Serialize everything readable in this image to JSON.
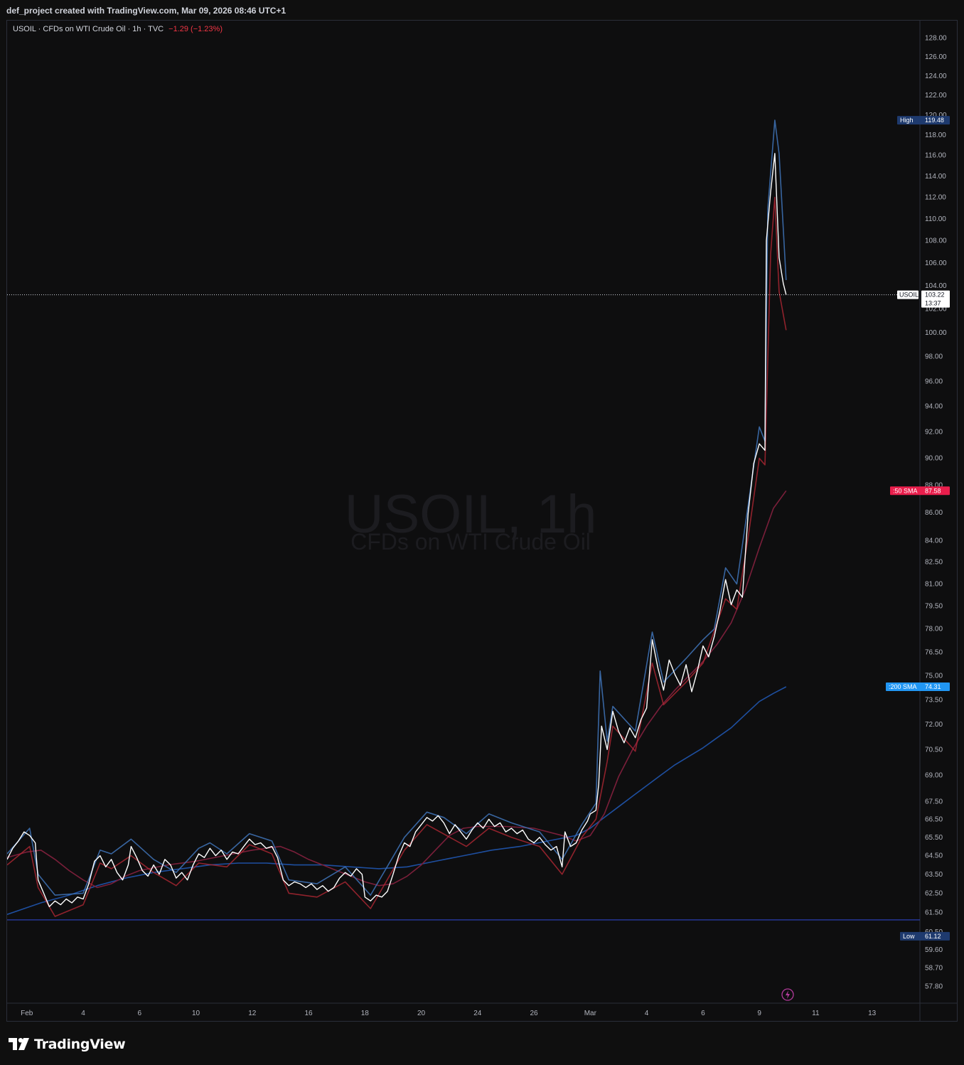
{
  "header": {
    "credit": "def_project created with TradingView.com, Mar 09, 2026 08:46 UTC+1"
  },
  "legend": {
    "text": "USOIL · CFDs on WTI Crude Oil · 1h · TVC",
    "change": "−1.29 (−1.23%)"
  },
  "watermark": {
    "line1": "USOIL, 1h",
    "line2": "CFDs on WTI Crude Oil"
  },
  "footer": {
    "logo_text": "TradingView"
  },
  "colors": {
    "price": "#ffffff",
    "price_shadow_blue": "#2962ff",
    "price_shadow_red": "#b22833",
    "sma50": "#7a1f3a",
    "sma200": "#1e4fa0",
    "low_line": "#2a3fb0",
    "change": "#f23645",
    "tag_high": "#1e3a6e",
    "tag_sma50": "#e91e4c",
    "tag_sma200": "#2196f3"
  },
  "chart_data": {
    "type": "line",
    "symbol": "USOIL",
    "interval": "1h",
    "y_scale": "log",
    "ylim": [
      57.0,
      129.5
    ],
    "y_ticks": [
      "128.00",
      "126.00",
      "124.00",
      "122.00",
      "120.00",
      "118.00",
      "116.00",
      "114.00",
      "112.00",
      "110.00",
      "108.00",
      "106.00",
      "104.00",
      "102.00",
      "100.00",
      "98.00",
      "96.00",
      "94.00",
      "92.00",
      "90.00",
      "88.00",
      "86.00",
      "84.00",
      "82.50",
      "81.00",
      "79.50",
      "78.00",
      "76.50",
      "75.00",
      "73.50",
      "72.00",
      "70.50",
      "69.00",
      "67.50",
      "66.50",
      "65.50",
      "64.50",
      "63.50",
      "62.50",
      "61.50",
      "60.50",
      "59.60",
      "58.70",
      "57.80"
    ],
    "x_ticks": [
      "Feb",
      "4",
      "6",
      "10",
      "12",
      "16",
      "18",
      "20",
      "24",
      "26",
      "Mar",
      "4",
      "6",
      "9",
      "11",
      "13"
    ],
    "x_tick_days": [
      0,
      2,
      4,
      6,
      8,
      10,
      12,
      14,
      16,
      18,
      20,
      22,
      24,
      26,
      28,
      30
    ],
    "x_range_days": [
      -0.7,
      31.7
    ],
    "price_series": [
      [
        -0.7,
        64.3
      ],
      [
        -0.5,
        64.9
      ],
      [
        -0.3,
        65.3
      ],
      [
        -0.1,
        65.8
      ],
      [
        0.1,
        65.6
      ],
      [
        0.3,
        65.2
      ],
      [
        0.4,
        63.2
      ],
      [
        0.6,
        62.5
      ],
      [
        0.8,
        61.8
      ],
      [
        1.0,
        62.1
      ],
      [
        1.2,
        61.9
      ],
      [
        1.4,
        62.2
      ],
      [
        1.6,
        62.0
      ],
      [
        1.8,
        62.3
      ],
      [
        2.0,
        62.2
      ],
      [
        2.2,
        63.0
      ],
      [
        2.4,
        64.2
      ],
      [
        2.6,
        64.5
      ],
      [
        2.8,
        63.9
      ],
      [
        3.0,
        64.3
      ],
      [
        3.2,
        63.6
      ],
      [
        3.4,
        63.2
      ],
      [
        3.6,
        64.0
      ],
      [
        3.7,
        65.0
      ],
      [
        3.9,
        64.4
      ],
      [
        4.1,
        63.7
      ],
      [
        4.3,
        63.4
      ],
      [
        4.5,
        64.0
      ],
      [
        4.7,
        63.5
      ],
      [
        4.9,
        64.3
      ],
      [
        5.1,
        64.0
      ],
      [
        5.3,
        63.3
      ],
      [
        5.5,
        63.6
      ],
      [
        5.7,
        63.2
      ],
      [
        5.9,
        64.0
      ],
      [
        6.1,
        64.6
      ],
      [
        6.3,
        64.4
      ],
      [
        6.5,
        64.9
      ],
      [
        6.7,
        64.5
      ],
      [
        6.9,
        64.8
      ],
      [
        7.1,
        64.3
      ],
      [
        7.3,
        64.7
      ],
      [
        7.5,
        64.6
      ],
      [
        7.7,
        65.0
      ],
      [
        7.9,
        65.4
      ],
      [
        8.1,
        65.1
      ],
      [
        8.3,
        65.2
      ],
      [
        8.5,
        64.9
      ],
      [
        8.7,
        65.0
      ],
      [
        8.9,
        64.4
      ],
      [
        9.1,
        63.2
      ],
      [
        9.3,
        62.9
      ],
      [
        9.5,
        63.1
      ],
      [
        9.7,
        63.0
      ],
      [
        9.9,
        62.8
      ],
      [
        10.1,
        63.0
      ],
      [
        10.3,
        62.7
      ],
      [
        10.5,
        62.9
      ],
      [
        10.7,
        62.6
      ],
      [
        10.9,
        62.8
      ],
      [
        11.1,
        63.3
      ],
      [
        11.3,
        63.6
      ],
      [
        11.5,
        63.4
      ],
      [
        11.7,
        63.8
      ],
      [
        11.9,
        63.5
      ],
      [
        12.0,
        62.3
      ],
      [
        12.2,
        62.1
      ],
      [
        12.4,
        62.4
      ],
      [
        12.6,
        62.3
      ],
      [
        12.8,
        62.6
      ],
      [
        13.0,
        63.5
      ],
      [
        13.2,
        64.5
      ],
      [
        13.4,
        65.2
      ],
      [
        13.6,
        65.0
      ],
      [
        13.8,
        65.8
      ],
      [
        14.0,
        66.2
      ],
      [
        14.2,
        66.6
      ],
      [
        14.4,
        66.4
      ],
      [
        14.6,
        66.7
      ],
      [
        14.8,
        66.3
      ],
      [
        15.0,
        65.7
      ],
      [
        15.2,
        66.2
      ],
      [
        15.4,
        65.8
      ],
      [
        15.6,
        65.4
      ],
      [
        15.8,
        65.9
      ],
      [
        16.0,
        66.3
      ],
      [
        16.2,
        66.0
      ],
      [
        16.4,
        66.5
      ],
      [
        16.6,
        66.1
      ],
      [
        16.8,
        66.3
      ],
      [
        17.0,
        65.8
      ],
      [
        17.2,
        66.0
      ],
      [
        17.4,
        65.7
      ],
      [
        17.6,
        65.9
      ],
      [
        17.8,
        65.4
      ],
      [
        18.0,
        65.2
      ],
      [
        18.2,
        65.5
      ],
      [
        18.4,
        65.1
      ],
      [
        18.6,
        64.8
      ],
      [
        18.8,
        65.0
      ],
      [
        19.0,
        63.9
      ],
      [
        19.1,
        65.8
      ],
      [
        19.3,
        65.0
      ],
      [
        19.5,
        65.2
      ],
      [
        19.7,
        65.9
      ],
      [
        19.9,
        66.4
      ],
      [
        20.0,
        66.8
      ],
      [
        20.2,
        67.0
      ],
      [
        20.3,
        68.5
      ],
      [
        20.4,
        71.9
      ],
      [
        20.6,
        70.5
      ],
      [
        20.8,
        72.8
      ],
      [
        21.0,
        71.6
      ],
      [
        21.2,
        70.9
      ],
      [
        21.4,
        71.8
      ],
      [
        21.6,
        71.2
      ],
      [
        21.8,
        72.3
      ],
      [
        22.0,
        73.0
      ],
      [
        22.2,
        77.3
      ],
      [
        22.4,
        75.5
      ],
      [
        22.6,
        74.1
      ],
      [
        22.8,
        76.0
      ],
      [
        23.0,
        75.1
      ],
      [
        23.2,
        74.4
      ],
      [
        23.4,
        75.7
      ],
      [
        23.6,
        74.0
      ],
      [
        23.8,
        75.3
      ],
      [
        24.0,
        76.9
      ],
      [
        24.2,
        76.2
      ],
      [
        24.4,
        77.5
      ],
      [
        24.6,
        79.2
      ],
      [
        24.8,
        81.3
      ],
      [
        25.0,
        79.6
      ],
      [
        25.2,
        80.6
      ],
      [
        25.4,
        80.1
      ],
      [
        25.6,
        85.9
      ],
      [
        25.8,
        89.6
      ],
      [
        26.0,
        91.1
      ],
      [
        26.2,
        90.6
      ],
      [
        26.25,
        108.0
      ],
      [
        26.4,
        112.5
      ],
      [
        26.55,
        116.2
      ],
      [
        26.7,
        106.5
      ],
      [
        26.85,
        104.2
      ],
      [
        26.95,
        103.22
      ]
    ],
    "price_shadow": [
      [
        -0.7,
        64.6
      ],
      [
        0.1,
        66.0
      ],
      [
        0.4,
        63.5
      ],
      [
        1.0,
        62.4
      ],
      [
        2.0,
        62.5
      ],
      [
        2.6,
        64.8
      ],
      [
        3.0,
        64.6
      ],
      [
        3.7,
        65.4
      ],
      [
        4.5,
        64.3
      ],
      [
        5.3,
        63.6
      ],
      [
        6.1,
        64.9
      ],
      [
        6.5,
        65.2
      ],
      [
        7.1,
        64.6
      ],
      [
        7.9,
        65.7
      ],
      [
        8.7,
        65.3
      ],
      [
        9.3,
        63.2
      ],
      [
        10.3,
        63.0
      ],
      [
        11.3,
        63.9
      ],
      [
        12.2,
        62.4
      ],
      [
        13.4,
        65.5
      ],
      [
        14.2,
        66.9
      ],
      [
        14.8,
        66.6
      ],
      [
        15.6,
        65.7
      ],
      [
        16.4,
        66.8
      ],
      [
        17.2,
        66.3
      ],
      [
        18.2,
        65.8
      ],
      [
        19.0,
        64.3
      ],
      [
        19.7,
        66.2
      ],
      [
        20.2,
        67.4
      ],
      [
        20.35,
        75.3
      ],
      [
        20.6,
        71.0
      ],
      [
        20.8,
        73.1
      ],
      [
        21.6,
        71.6
      ],
      [
        22.2,
        77.8
      ],
      [
        22.6,
        74.6
      ],
      [
        23.4,
        76.1
      ],
      [
        24.0,
        77.3
      ],
      [
        24.4,
        78.0
      ],
      [
        24.8,
        82.1
      ],
      [
        25.2,
        81.0
      ],
      [
        25.6,
        86.5
      ],
      [
        26.0,
        92.4
      ],
      [
        26.2,
        91.3
      ],
      [
        26.3,
        110.9
      ],
      [
        26.55,
        119.48
      ],
      [
        26.7,
        116.2
      ],
      [
        26.95,
        104.5
      ]
    ],
    "price_low_shadow": [
      [
        -0.7,
        64.0
      ],
      [
        0.1,
        65.0
      ],
      [
        0.4,
        62.8
      ],
      [
        1.0,
        61.3
      ],
      [
        2.0,
        61.9
      ],
      [
        2.6,
        64.1
      ],
      [
        3.0,
        63.8
      ],
      [
        3.7,
        64.5
      ],
      [
        4.5,
        63.6
      ],
      [
        5.3,
        62.9
      ],
      [
        6.1,
        64.1
      ],
      [
        7.1,
        63.9
      ],
      [
        7.9,
        65.1
      ],
      [
        8.7,
        64.6
      ],
      [
        9.3,
        62.5
      ],
      [
        10.3,
        62.3
      ],
      [
        11.3,
        63.1
      ],
      [
        12.2,
        61.7
      ],
      [
        13.4,
        64.8
      ],
      [
        14.2,
        66.2
      ],
      [
        15.6,
        65.0
      ],
      [
        16.4,
        66.0
      ],
      [
        17.2,
        65.5
      ],
      [
        18.2,
        65.0
      ],
      [
        19.0,
        63.5
      ],
      [
        19.7,
        65.5
      ],
      [
        20.2,
        66.5
      ],
      [
        20.6,
        69.8
      ],
      [
        20.8,
        71.9
      ],
      [
        21.6,
        70.4
      ],
      [
        22.2,
        75.8
      ],
      [
        22.6,
        73.2
      ],
      [
        23.4,
        74.6
      ],
      [
        24.0,
        75.8
      ],
      [
        24.8,
        80.0
      ],
      [
        25.2,
        79.3
      ],
      [
        25.6,
        84.2
      ],
      [
        26.0,
        90.0
      ],
      [
        26.2,
        89.5
      ],
      [
        26.4,
        106.8
      ],
      [
        26.55,
        112.0
      ],
      [
        26.7,
        103.5
      ],
      [
        26.95,
        100.2
      ]
    ],
    "sma50": [
      [
        -0.7,
        64.4
      ],
      [
        0.0,
        64.7
      ],
      [
        0.5,
        64.8
      ],
      [
        1.0,
        64.3
      ],
      [
        1.5,
        63.7
      ],
      [
        2.0,
        63.2
      ],
      [
        2.5,
        62.8
      ],
      [
        3.0,
        63.0
      ],
      [
        3.5,
        63.4
      ],
      [
        4.0,
        63.7
      ],
      [
        5.0,
        64.0
      ],
      [
        6.0,
        64.2
      ],
      [
        7.0,
        64.5
      ],
      [
        8.0,
        64.8
      ],
      [
        9.0,
        65.0
      ],
      [
        9.5,
        64.7
      ],
      [
        10.0,
        64.3
      ],
      [
        10.5,
        64.0
      ],
      [
        11.0,
        63.7
      ],
      [
        11.5,
        63.4
      ],
      [
        12.0,
        63.1
      ],
      [
        12.5,
        62.9
      ],
      [
        13.0,
        63.0
      ],
      [
        13.5,
        63.4
      ],
      [
        14.0,
        64.0
      ],
      [
        14.5,
        64.8
      ],
      [
        15.0,
        65.6
      ],
      [
        15.5,
        66.0
      ],
      [
        16.0,
        66.1
      ],
      [
        17.0,
        66.1
      ],
      [
        18.0,
        66.0
      ],
      [
        19.0,
        65.6
      ],
      [
        19.5,
        65.3
      ],
      [
        20.0,
        65.6
      ],
      [
        20.5,
        66.8
      ],
      [
        21.0,
        68.9
      ],
      [
        21.5,
        70.5
      ],
      [
        22.0,
        71.9
      ],
      [
        22.5,
        73.1
      ],
      [
        23.0,
        74.1
      ],
      [
        23.5,
        75.0
      ],
      [
        24.0,
        75.9
      ],
      [
        24.5,
        77.0
      ],
      [
        25.0,
        78.4
      ],
      [
        25.5,
        80.6
      ],
      [
        26.0,
        83.5
      ],
      [
        26.5,
        86.3
      ],
      [
        26.95,
        87.58
      ]
    ],
    "sma200": [
      [
        -0.7,
        61.4
      ],
      [
        0.5,
        62.0
      ],
      [
        1.5,
        62.4
      ],
      [
        2.5,
        62.9
      ],
      [
        3.5,
        63.3
      ],
      [
        4.5,
        63.6
      ],
      [
        5.5,
        63.8
      ],
      [
        6.5,
        64.0
      ],
      [
        7.5,
        64.1
      ],
      [
        8.5,
        64.1
      ],
      [
        9.5,
        64.0
      ],
      [
        10.5,
        64.0
      ],
      [
        11.5,
        63.9
      ],
      [
        12.5,
        63.8
      ],
      [
        13.5,
        63.9
      ],
      [
        14.5,
        64.2
      ],
      [
        15.5,
        64.5
      ],
      [
        16.5,
        64.8
      ],
      [
        17.5,
        65.0
      ],
      [
        18.5,
        65.3
      ],
      [
        19.5,
        65.6
      ],
      [
        20.0,
        66.0
      ],
      [
        20.5,
        66.6
      ],
      [
        21.0,
        67.2
      ],
      [
        21.5,
        67.8
      ],
      [
        22.0,
        68.4
      ],
      [
        22.5,
        69.0
      ],
      [
        23.0,
        69.6
      ],
      [
        23.5,
        70.1
      ],
      [
        24.0,
        70.6
      ],
      [
        24.5,
        71.2
      ],
      [
        25.0,
        71.8
      ],
      [
        25.5,
        72.6
      ],
      [
        26.0,
        73.4
      ],
      [
        26.5,
        73.9
      ],
      [
        26.95,
        74.31
      ]
    ],
    "low_line_value": 61.12,
    "current_price_value": 103.22,
    "tags": {
      "symbol_label": "USOIL",
      "current_price": "103.22",
      "countdown": "13:37",
      "high_label": "High",
      "high_value": "119.48",
      "low_label": "Low",
      "low_value": "61.12",
      "sma50_label": ":50 SMA",
      "sma50_value": "87.58",
      "sma200_label": ":200 SMA",
      "sma200_value": "74.31"
    }
  }
}
